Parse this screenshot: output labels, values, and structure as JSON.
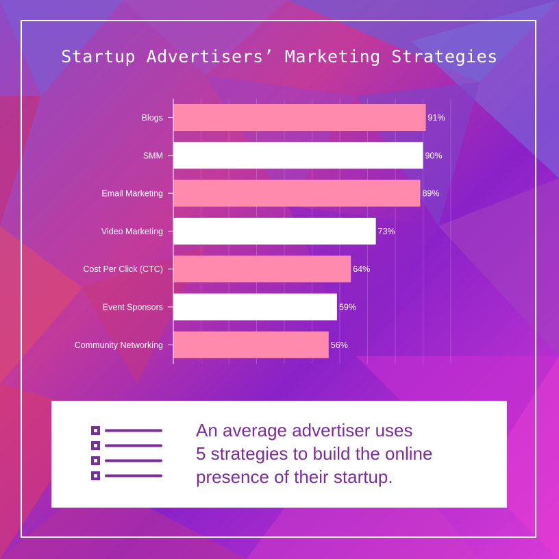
{
  "title": "Startup Advertisers’ Marketing Strategies",
  "colors": {
    "bar_odd": "#ff8aae",
    "bar_even": "#ffffff",
    "text": "#ffffff",
    "note_text": "#7b2d9e",
    "icon": "#7b2d9e"
  },
  "chart_data": {
    "type": "bar",
    "orientation": "horizontal",
    "categories": [
      "Blogs",
      "SMM",
      "Email Marketing",
      "Video Marketing",
      "Cost Per Click (CTC)",
      "Event Sponsors",
      "Community Networking"
    ],
    "values": [
      91,
      90,
      89,
      73,
      64,
      59,
      56
    ],
    "value_labels": [
      "91%",
      "90%",
      "89%",
      "73%",
      "64%",
      "59%",
      "56%"
    ],
    "unit": "%",
    "xlim": [
      0,
      100
    ],
    "grid": true
  },
  "info": {
    "icon": "checklist-icon",
    "lines": [
      "An average advertiser uses",
      "5 strategies to build the online",
      "presence of their startup."
    ]
  }
}
